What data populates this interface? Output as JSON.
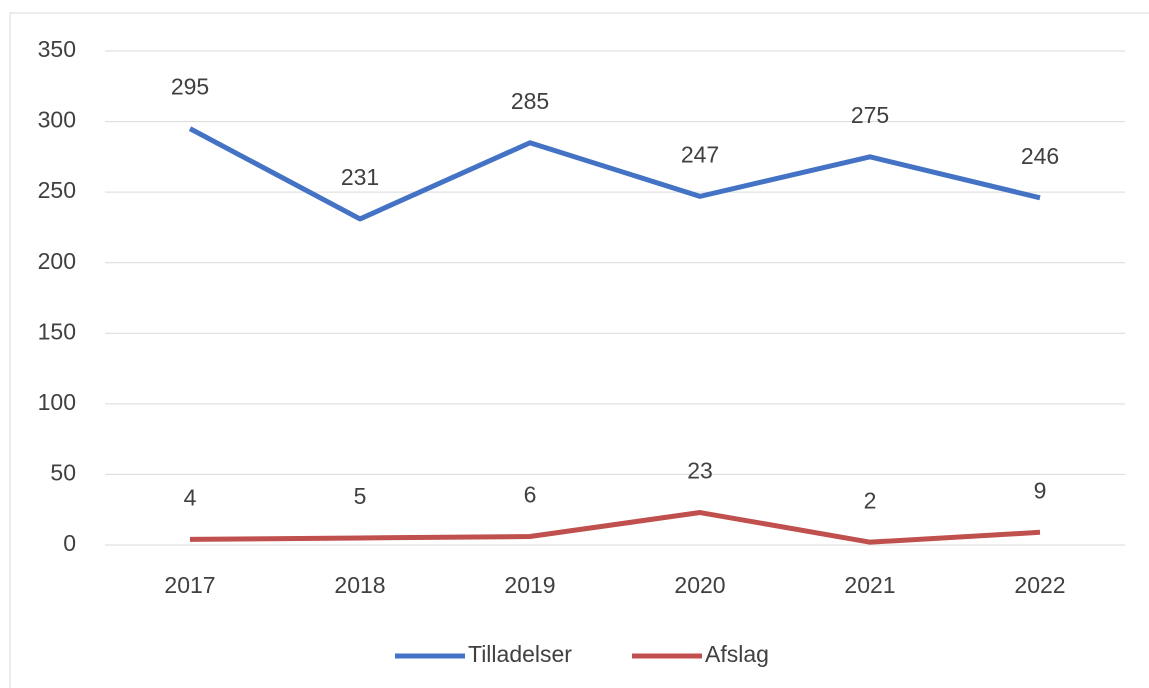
{
  "chart_data": {
    "type": "line",
    "categories": [
      "2017",
      "2018",
      "2019",
      "2020",
      "2021",
      "2022"
    ],
    "series": [
      {
        "name": "Tilladelser",
        "color": "#4472c4",
        "values": [
          295,
          231,
          285,
          247,
          275,
          246
        ]
      },
      {
        "name": "Afslag",
        "color": "#c0504d",
        "values": [
          4,
          5,
          6,
          23,
          2,
          9
        ]
      }
    ],
    "ylim": [
      0,
      350
    ],
    "yticks": [
      0,
      50,
      100,
      150,
      200,
      250,
      300,
      350
    ],
    "grid": true,
    "legend": "bottom"
  }
}
